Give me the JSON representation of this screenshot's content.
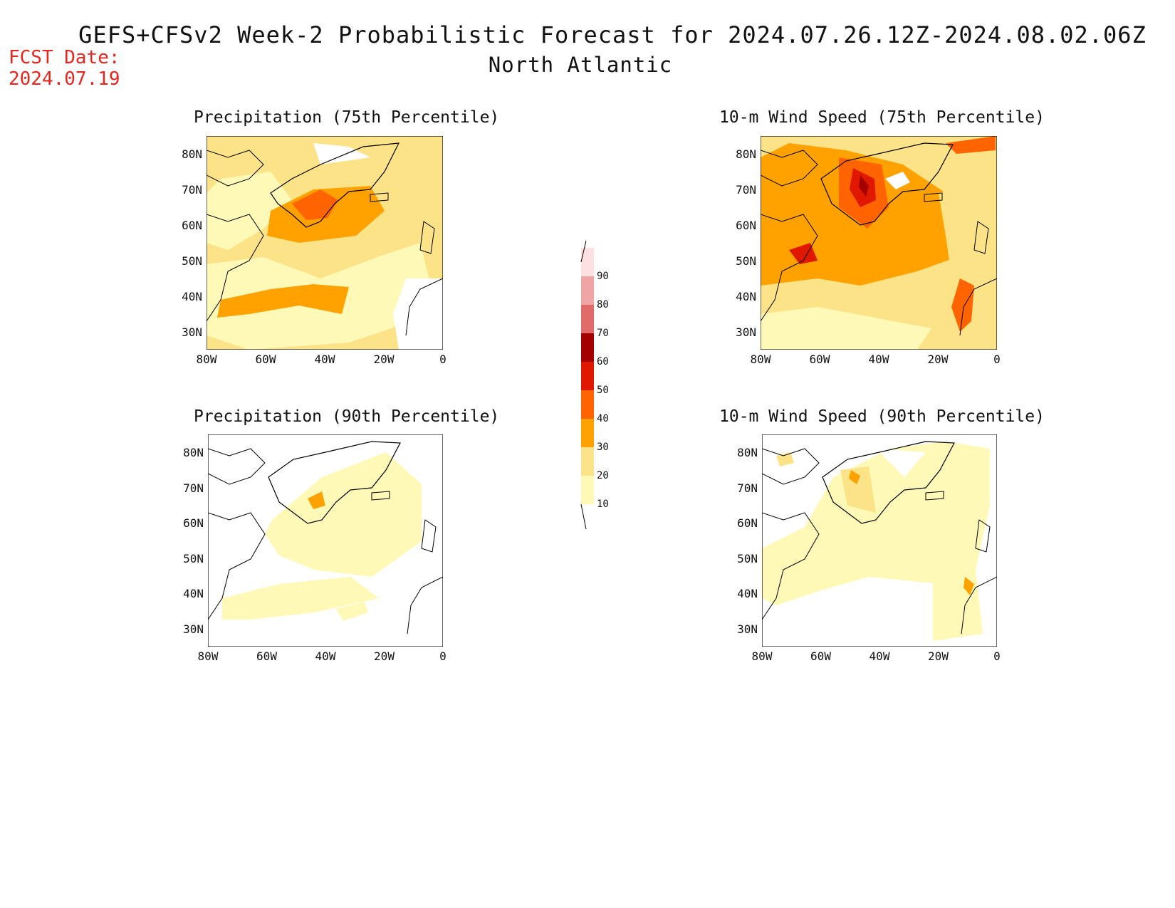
{
  "title": "GEFS+CFSv2 Week-2 Probabilistic Forecast for 2024.07.26.12Z-2024.08.02.06Z",
  "region": "North Atlantic",
  "fcst_label": "FCST Date:",
  "fcst_date": "2024.07.19",
  "panels": [
    {
      "title": "Precipitation (75th Percentile)"
    },
    {
      "title": "10-m Wind Speed (75th Percentile)"
    },
    {
      "title": "Precipitation (90th Percentile)"
    },
    {
      "title": "10-m Wind Speed (90th Percentile)"
    }
  ],
  "lat_ticks": [
    "80N",
    "70N",
    "60N",
    "50N",
    "40N",
    "30N"
  ],
  "lon_ticks": [
    "80W",
    "60W",
    "40W",
    "20W",
    "0"
  ],
  "colorbar": {
    "levels": [
      "10",
      "20",
      "30",
      "40",
      "50",
      "60",
      "70",
      "80",
      "90"
    ],
    "colors": [
      "#fff9b8",
      "#fde387",
      "#ffa200",
      "#ff6400",
      "#e11800",
      "#a50000",
      "#e06a6a",
      "#f0a5a5",
      "#fde0e0"
    ]
  },
  "colors": {
    "fcst_text": "#e8261f",
    "land_blank": "#ffffff",
    "coast": "#000000"
  }
}
